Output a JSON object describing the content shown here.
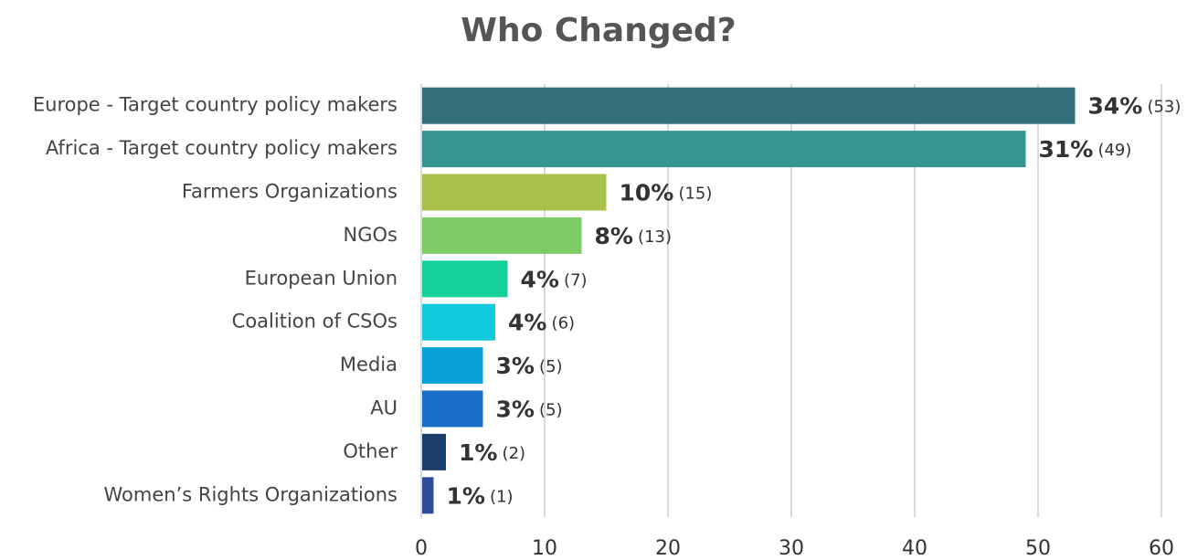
{
  "chart_data": {
    "type": "barh",
    "title": "Who Changed?",
    "categories": [
      "Europe - Target country policy makers",
      "Africa - Target country policy makers",
      "Farmers Organizations",
      "NGOs",
      "European Union",
      "Coalition of CSOs",
      "Media",
      "AU",
      "Other",
      "Women’s Rights Organizations"
    ],
    "values": [
      53,
      49,
      15,
      13,
      7,
      6,
      5,
      5,
      2,
      1
    ],
    "value_labels": [
      "(53)",
      "(49)",
      "(15)",
      "(13)",
      "(7)",
      "(6)",
      "(5)",
      "(5)",
      "(2)",
      "(1)"
    ],
    "share_labels": [
      "34%",
      "31%",
      "10%",
      "8%",
      "4%",
      "4%",
      "3%",
      "3%",
      "1%",
      "1%"
    ],
    "colors": [
      "#336e7b",
      "#35968f",
      "#a8c14a",
      "#7dcb67",
      "#16d09a",
      "#11cbdc",
      "#0aa0d8",
      "#1a6fc9",
      "#1b3f6b",
      "#2f4b9a"
    ],
    "xlim": [
      0,
      60
    ],
    "xticks": [
      0,
      10,
      20,
      30,
      40,
      50,
      60
    ],
    "grid": true
  }
}
